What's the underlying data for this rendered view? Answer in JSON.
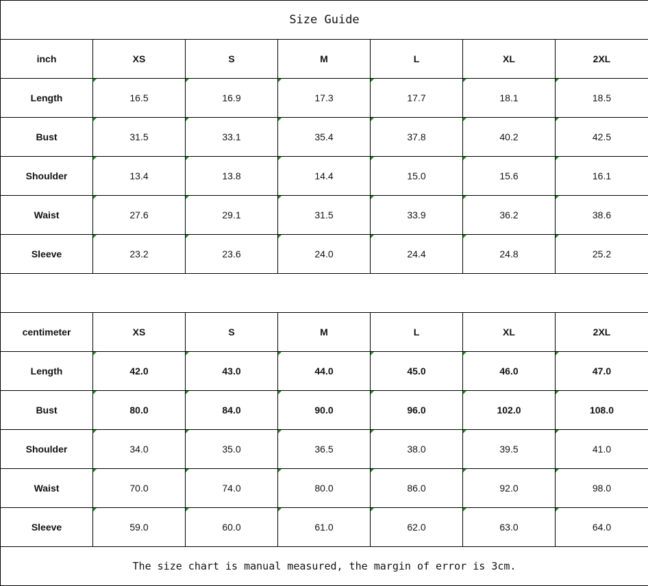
{
  "title": "Size Guide",
  "sizes": [
    "XS",
    "S",
    "M",
    "L",
    "XL",
    "2XL"
  ],
  "inch": {
    "unit_label": "inch",
    "rows": [
      {
        "label": "Length",
        "values": [
          "16.5",
          "16.9",
          "17.3",
          "17.7",
          "18.1",
          "18.5"
        ]
      },
      {
        "label": "Bust",
        "values": [
          "31.5",
          "33.1",
          "35.4",
          "37.8",
          "40.2",
          "42.5"
        ]
      },
      {
        "label": "Shoulder",
        "values": [
          "13.4",
          "13.8",
          "14.4",
          "15.0",
          "15.6",
          "16.1"
        ]
      },
      {
        "label": "Waist",
        "values": [
          "27.6",
          "29.1",
          "31.5",
          "33.9",
          "36.2",
          "38.6"
        ]
      },
      {
        "label": "Sleeve",
        "values": [
          "23.2",
          "23.6",
          "24.0",
          "24.4",
          "24.8",
          "25.2"
        ]
      }
    ]
  },
  "centimeter": {
    "unit_label": "centimeter",
    "rows": [
      {
        "label": "Length",
        "values": [
          "42.0",
          "43.0",
          "44.0",
          "45.0",
          "46.0",
          "47.0"
        ],
        "bold": true
      },
      {
        "label": "Bust",
        "values": [
          "80.0",
          "84.0",
          "90.0",
          "96.0",
          "102.0",
          "108.0"
        ],
        "bold": true
      },
      {
        "label": "Shoulder",
        "values": [
          "34.0",
          "35.0",
          "36.5",
          "38.0",
          "39.5",
          "41.0"
        ]
      },
      {
        "label": "Waist",
        "values": [
          "70.0",
          "74.0",
          "80.0",
          "86.0",
          "92.0",
          "98.0"
        ]
      },
      {
        "label": "Sleeve",
        "values": [
          "59.0",
          "60.0",
          "61.0",
          "62.0",
          "63.0",
          "64.0"
        ]
      }
    ]
  },
  "footer_note": "The size chart is manual measured, the margin of error is 3cm."
}
